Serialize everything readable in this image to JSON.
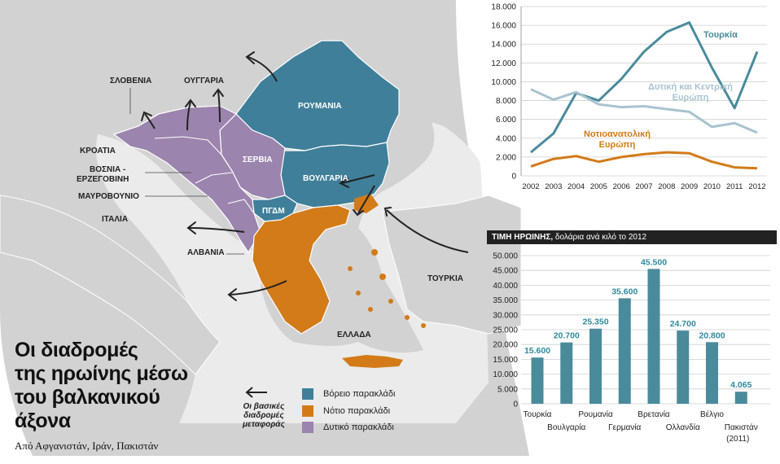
{
  "map": {
    "countries": {
      "slovenia": "ΣΛΟΒΕΝΙΑ",
      "hungary": "ΟΥΓΓΑΡΙΑ",
      "romania": "ΡΟΥΜΑΝΙΑ",
      "croatia": "ΚΡΟΑΤΙΑ",
      "bosnia_1": "ΒΟΣΝΙΑ -",
      "bosnia_2": "ΕΡΖΕΓΟΒΙΝΗ",
      "montenegro": "ΜΑΥΡΟΒΟΥΝΙΟ",
      "serbia": "ΣΕΡΒΙΑ",
      "bulgaria": "ΒΟΥΛΓΑΡΙΑ",
      "italy": "ΙΤΑΛΙΑ",
      "fyrom": "ΠΓΔΜ",
      "albania": "ΑΛΒΑΝΙΑ",
      "turkey": "ΤΟΥΡΚΙΑ",
      "greece": "ΕΛΛΑΔΑ"
    },
    "title": "Οι διαδρομές της ηρωίνης μέσω του βαλκανικού άξονα",
    "title_lines": [
      "Οι διαδρομές",
      "της ηρωίνης μέσω",
      "του βαλκανικού",
      "άξονα"
    ],
    "subtitle": "Από Αφγανιστάν, Ιράν, Πακιστάν",
    "arrow_caption": [
      "Οι βασικές",
      "διαδρομές",
      "μεταφοράς"
    ],
    "legend": [
      {
        "label": "Βόρειο παρακλάδι",
        "color": "#3f7f9a"
      },
      {
        "label": "Νότιο παρακλάδι",
        "color": "#d27b18"
      },
      {
        "label": "Δυτικό παρακλάδι",
        "color": "#9b84ad"
      }
    ]
  },
  "chart_data": [
    {
      "type": "line",
      "x": [
        "2002",
        "2003",
        "2004",
        "2005",
        "2006",
        "2007",
        "2008",
        "2009",
        "2010",
        "2011",
        "2012"
      ],
      "ylim": [
        0,
        18000
      ],
      "y_ticks": [
        "0",
        "2.000",
        "4.000",
        "6.000",
        "8.000",
        "10.000",
        "12.000",
        "14.000",
        "16.000",
        "18.000"
      ],
      "y_tick_values": [
        0,
        2000,
        4000,
        6000,
        8000,
        10000,
        12000,
        14000,
        16000,
        18000
      ],
      "grid": true,
      "series": [
        {
          "name": "Τουρκία",
          "color": "#4a8b9b",
          "values": [
            2500,
            4500,
            8800,
            8000,
            10300,
            13200,
            15300,
            16300,
            11500,
            7200,
            13200
          ]
        },
        {
          "name_lines": [
            "Δυτική και Κεντρική",
            "Ευρώπη"
          ],
          "color": "#a8c3cf",
          "values": [
            9200,
            8100,
            8900,
            7600,
            7300,
            7400,
            7100,
            6800,
            5200,
            5600,
            4600
          ]
        },
        {
          "name_lines": [
            "Νοτιοανατολική",
            "Ευρώπη"
          ],
          "color": "#d27b18",
          "values": [
            1000,
            1800,
            2100,
            1500,
            2000,
            2300,
            2500,
            2400,
            1500,
            900,
            800
          ]
        }
      ]
    },
    {
      "type": "bar",
      "header_bold": "ΤΙΜΗ ΗΡΩΙΝΗΣ,",
      "header_rest": " δολάρια ανά κιλό το 2012",
      "ylim": [
        0,
        50000
      ],
      "y_ticks": [
        "0",
        "5.000",
        "10.000",
        "15.000",
        "20.000",
        "25.000",
        "30.000",
        "35.000",
        "40.000",
        "45.000",
        "50.000"
      ],
      "y_tick_values": [
        0,
        5000,
        10000,
        15000,
        20000,
        25000,
        30000,
        35000,
        40000,
        45000,
        50000
      ],
      "grid": true,
      "color": "#4a8b9b",
      "label_color": "#2f8a9e",
      "categories": [
        "Τουρκία",
        "Βουλγαρία",
        "Ρουμανία",
        "Γερμανία",
        "Βρετανία",
        "Ολλανδία",
        "Βέλγιο",
        "Πακιστάν"
      ],
      "category_note": "(2011)",
      "values": [
        15600,
        20700,
        25350,
        35600,
        45500,
        24700,
        20800,
        4065
      ],
      "value_labels": [
        "15.600",
        "20.700",
        "25.350",
        "35.600",
        "45.500",
        "24.700",
        "20.800",
        "4.065"
      ]
    }
  ]
}
